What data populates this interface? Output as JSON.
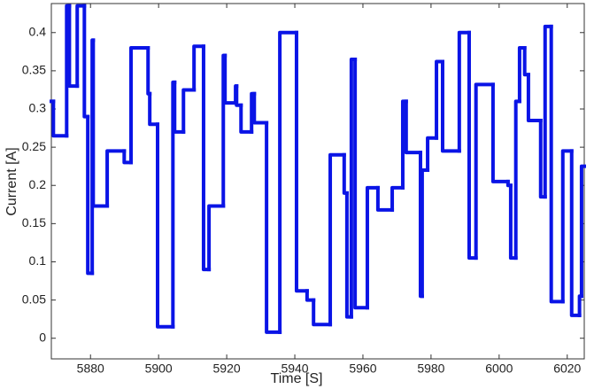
{
  "chart_data": {
    "type": "step",
    "x_label": "Time [S]",
    "y_label": "Current [A]",
    "series": [
      {
        "name": "Current",
        "color": "#0a14e6",
        "x": [
          5868.5,
          5869.1,
          5873.0,
          5873.8,
          5876.1,
          5878.2,
          5879.2,
          5880.5,
          5880.8,
          5884.9,
          5889.9,
          5891.9,
          5896.9,
          5897.4,
          5899.7,
          5904.2,
          5904.7,
          5907.3,
          5910.4,
          5913.2,
          5914.8,
          5919.0,
          5919.5,
          5922.6,
          5922.9,
          5924.2,
          5927.3,
          5928.1,
          5931.7,
          5935.6,
          5940.5,
          5943.6,
          5945.5,
          5950.4,
          5954.5,
          5955.3,
          5956.6,
          5957.7,
          5961.3,
          5964.4,
          5968.6,
          5971.7,
          5972.7,
          5976.9,
          5977.4,
          5979.0,
          5981.6,
          5983.4,
          5988.3,
          5991.2,
          5993.2,
          5998.2,
          6002.6,
          6003.4,
          6004.9,
          6006.0,
          6007.5,
          6008.6,
          6012.2,
          6013.5,
          6015.3,
          6018.7,
          6021.3,
          6023.6,
          6024.2
        ],
        "values": [
          0.31,
          0.265,
          0.435,
          0.33,
          0.435,
          0.29,
          0.085,
          0.39,
          0.173,
          0.245,
          0.23,
          0.38,
          0.32,
          0.28,
          0.015,
          0.335,
          0.27,
          0.325,
          0.382,
          0.09,
          0.173,
          0.37,
          0.308,
          0.33,
          0.305,
          0.27,
          0.32,
          0.282,
          0.008,
          0.4,
          0.062,
          0.05,
          0.018,
          0.24,
          0.19,
          0.028,
          0.365,
          0.04,
          0.197,
          0.168,
          0.197,
          0.31,
          0.243,
          0.055,
          0.22,
          0.262,
          0.362,
          0.245,
          0.4,
          0.105,
          0.332,
          0.205,
          0.2,
          0.105,
          0.31,
          0.38,
          0.345,
          0.285,
          0.185,
          0.408,
          0.048,
          0.245,
          0.03,
          0.055,
          0.225
        ]
      }
    ],
    "xlim": [
      5868.5,
      6025
    ],
    "xticks": [
      5880,
      5900,
      5920,
      5940,
      5960,
      5980,
      6000,
      6020
    ],
    "ylim": [
      -0.027,
      0.438
    ],
    "yticks": [
      0,
      0.05,
      0.1,
      0.15,
      0.2,
      0.25,
      0.3,
      0.35,
      0.4
    ],
    "grid": false
  }
}
